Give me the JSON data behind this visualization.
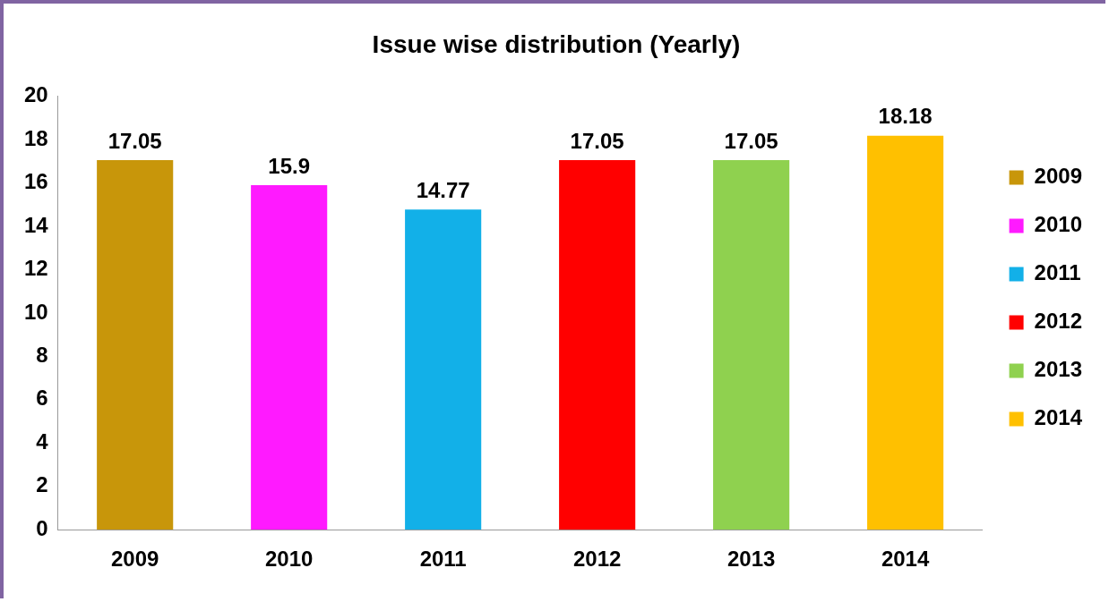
{
  "chart_data": {
    "type": "bar",
    "title": "Issue wise distribution (Yearly)",
    "categories": [
      "2009",
      "2010",
      "2011",
      "2012",
      "2013",
      "2014"
    ],
    "series": [
      {
        "name": "2009",
        "color": "#c8960a",
        "values": [
          17.05,
          null,
          null,
          null,
          null,
          null
        ]
      },
      {
        "name": "2010",
        "color": "#ff1aff",
        "values": [
          null,
          15.9,
          null,
          null,
          null,
          null
        ]
      },
      {
        "name": "2011",
        "color": "#12b0e8",
        "values": [
          null,
          null,
          14.77,
          null,
          null,
          null
        ]
      },
      {
        "name": "2012",
        "color": "#ff0000",
        "values": [
          null,
          null,
          null,
          17.05,
          null,
          null
        ]
      },
      {
        "name": "2013",
        "color": "#8fd14f",
        "values": [
          null,
          null,
          null,
          null,
          17.05,
          null
        ]
      },
      {
        "name": "2014",
        "color": "#ffc000",
        "values": [
          null,
          null,
          null,
          null,
          null,
          18.18
        ]
      }
    ],
    "ylim": [
      0,
      20
    ],
    "yticks": [
      0,
      2,
      4,
      6,
      8,
      10,
      12,
      14,
      16,
      18,
      20
    ],
    "grid": false,
    "legend": "right",
    "data_labels": true
  }
}
